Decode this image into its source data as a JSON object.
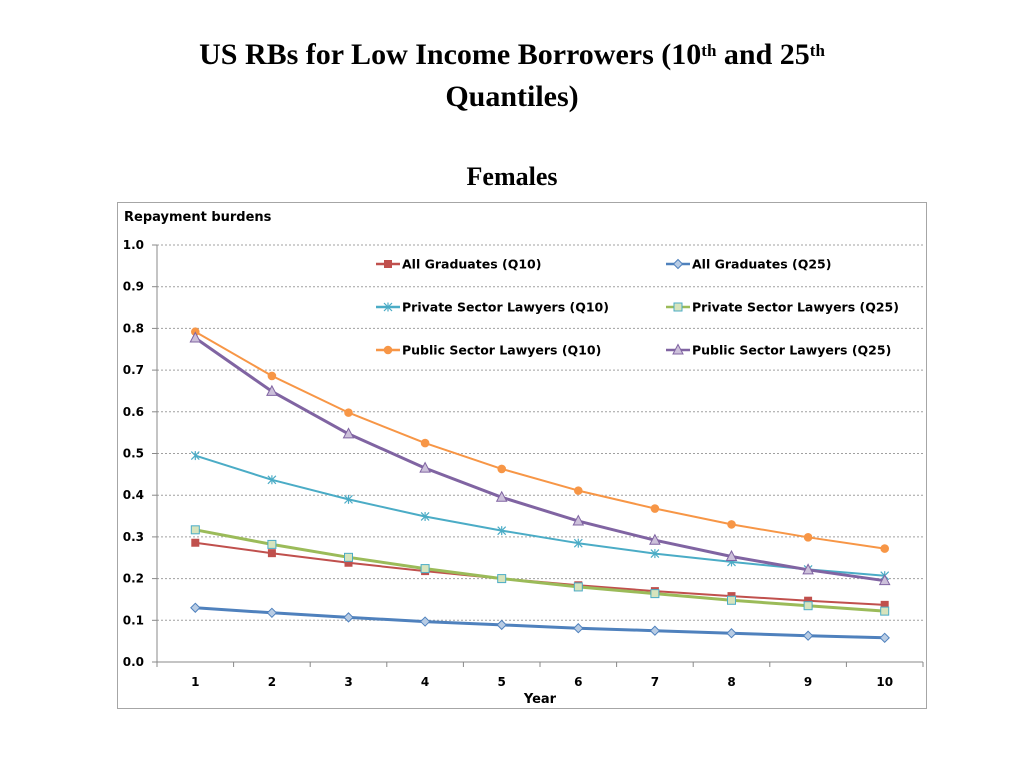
{
  "title": {
    "part1": "US RBs for Low Income Borrowers (10",
    "sup1": "th",
    "part2": " and 25",
    "sup2": "th",
    "part3": " Quantiles)"
  },
  "subtitle": "Females",
  "chart_data": {
    "type": "line",
    "ylabel": "Repayment burdens",
    "xlabel": "Year",
    "x": [
      1,
      2,
      3,
      4,
      5,
      6,
      7,
      8,
      9,
      10
    ],
    "ylim": [
      0,
      1.0
    ],
    "yticks": [
      "0.0",
      "0.1",
      "0.2",
      "0.3",
      "0.4",
      "0.5",
      "0.6",
      "0.7",
      "0.8",
      "0.9",
      "1.0"
    ],
    "grid": "horizontal-dashed",
    "legend_position": "top-right",
    "series": [
      {
        "name": "All Graduates (Q10)",
        "color": "#c0504d",
        "marker": "square",
        "values": [
          0.286,
          0.261,
          0.238,
          0.218,
          0.2,
          0.184,
          0.17,
          0.158,
          0.147,
          0.137
        ]
      },
      {
        "name": "All Graduates (Q25)",
        "color": "#4f81bd",
        "marker": "diamond",
        "values": [
          0.13,
          0.118,
          0.107,
          0.097,
          0.089,
          0.081,
          0.075,
          0.069,
          0.063,
          0.058
        ]
      },
      {
        "name": "Private Sector Lawyers (Q10)",
        "color": "#4bacc6",
        "marker": "star",
        "values": [
          0.495,
          0.437,
          0.39,
          0.349,
          0.315,
          0.285,
          0.26,
          0.24,
          0.222,
          0.207
        ]
      },
      {
        "name": "Private Sector Lawyers (Q25)",
        "color": "#9bbb59",
        "marker": "square-open",
        "values": [
          0.317,
          0.282,
          0.251,
          0.224,
          0.2,
          0.18,
          0.164,
          0.148,
          0.135,
          0.122
        ]
      },
      {
        "name": "Public Sector Lawyers (Q10)",
        "color": "#f79646",
        "marker": "circle",
        "values": [
          0.792,
          0.686,
          0.598,
          0.525,
          0.463,
          0.411,
          0.368,
          0.33,
          0.299,
          0.272
        ]
      },
      {
        "name": "Public Sector Lawyers (Q25)",
        "color": "#8064a2",
        "marker": "triangle",
        "values": [
          0.777,
          0.649,
          0.547,
          0.465,
          0.395,
          0.338,
          0.292,
          0.253,
          0.221,
          0.195
        ]
      }
    ]
  }
}
